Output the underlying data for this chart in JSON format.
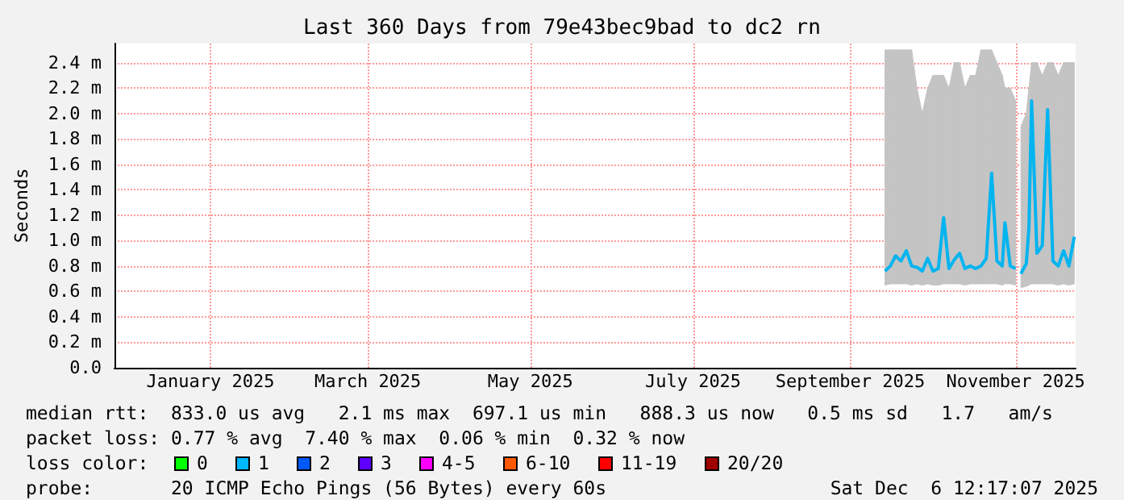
{
  "chart_data": {
    "type": "line",
    "title": "Last 360 Days from 79e43bec9bad to dc2 rn",
    "ylabel": "Seconds",
    "x": [
      "2025-09-26",
      "2025-09-28",
      "2025-09-30",
      "2025-10-02",
      "2025-10-04",
      "2025-10-06",
      "2025-10-08",
      "2025-10-10",
      "2025-10-12",
      "2025-10-14",
      "2025-10-16",
      "2025-10-18",
      "2025-10-20",
      "2025-10-22",
      "2025-10-24",
      "2025-10-26",
      "2025-10-28",
      "2025-10-30",
      "2025-11-01",
      "2025-11-03",
      "2025-11-05",
      "2025-11-07",
      "2025-11-09",
      "2025-11-10",
      "2025-11-12",
      "2025-11-14",
      "2025-11-15",
      "2025-11-16",
      "2025-11-18",
      "2025-11-19",
      "2025-11-20",
      "2025-11-22",
      "2025-11-24",
      "2025-11-26",
      "2025-11-28",
      "2025-11-30",
      "2025-12-02",
      "2025-12-04",
      "2025-12-06"
    ],
    "series": [
      {
        "color": "#00b4f0",
        "values": [
          0.76,
          0.8,
          0.88,
          0.84,
          0.92,
          0.8,
          0.79,
          0.76,
          0.86,
          0.76,
          0.78,
          1.18,
          0.78,
          0.85,
          0.9,
          0.78,
          0.8,
          0.78,
          0.8,
          0.86,
          1.53,
          0.84,
          0.8,
          1.14,
          0.8,
          0.78,
          null,
          0.74,
          0.82,
          1.1,
          2.1,
          0.9,
          0.96,
          2.03,
          0.84,
          0.8,
          0.92,
          0.8,
          1.03
        ],
        "lower": [
          0.65,
          0.66,
          0.66,
          0.66,
          0.66,
          0.65,
          0.66,
          0.65,
          0.66,
          0.65,
          0.65,
          0.66,
          0.66,
          0.66,
          0.66,
          0.65,
          0.66,
          0.66,
          0.66,
          0.66,
          0.66,
          0.66,
          0.65,
          0.66,
          0.66,
          0.65,
          null,
          0.63,
          0.64,
          0.65,
          0.66,
          0.66,
          0.66,
          0.66,
          0.66,
          0.65,
          0.66,
          0.65,
          0.66
        ],
        "upper": [
          2.5,
          2.5,
          2.5,
          2.5,
          2.5,
          2.5,
          2.2,
          2.0,
          2.2,
          2.3,
          2.3,
          2.3,
          2.2,
          2.4,
          2.4,
          2.2,
          2.3,
          2.3,
          2.5,
          2.5,
          2.5,
          2.4,
          2.3,
          2.2,
          2.2,
          2.1,
          null,
          1.9,
          2.0,
          2.2,
          2.4,
          2.4,
          2.3,
          2.4,
          2.4,
          2.3,
          2.4,
          2.4,
          2.4
        ]
      }
    ],
    "xlim": [
      "2024-12-11",
      "2025-12-06T12:17"
    ],
    "xticks": [
      {
        "value": "2025-01-16",
        "label": "January 2025"
      },
      {
        "value": "2025-03-16",
        "label": "March 2025"
      },
      {
        "value": "2025-05-16",
        "label": "May 2025"
      },
      {
        "value": "2025-07-16",
        "label": "July 2025"
      },
      {
        "value": "2025-09-13",
        "label": "September 2025"
      },
      {
        "value": "2025-11-14",
        "label": "November 2025"
      }
    ],
    "ylim": [
      0,
      2.55
    ],
    "yticks": [
      {
        "value": 0,
        "label": "0.0"
      },
      {
        "value": 0.2,
        "label": "0.2 m"
      },
      {
        "value": 0.4,
        "label": "0.4 m"
      },
      {
        "value": 0.6,
        "label": "0.6 m"
      },
      {
        "value": 0.8,
        "label": "0.8 m"
      },
      {
        "value": 1,
        "label": "1.0 m"
      },
      {
        "value": 1.2,
        "label": "1.2 m"
      },
      {
        "value": 1.4,
        "label": "1.4 m"
      },
      {
        "value": 1.6,
        "label": "1.6 m"
      },
      {
        "value": 1.8,
        "label": "1.8 m"
      },
      {
        "value": 2,
        "label": "2.0 m"
      },
      {
        "value": 2.2,
        "label": "2.2 m"
      },
      {
        "value": 2.4,
        "label": "2.4 m"
      }
    ],
    "grid": true,
    "annotations": [
      "median rtt:  833.0 us avg   2.1 ms max  697.1 us min   888.3 us now   0.5 ms sd   1.7   am/s",
      "packet loss: 0.77 % avg  7.40 % max  0.06 % min  0.32 % now",
      "loss color:",
      "0",
      "1",
      "2",
      "3",
      "4-5",
      "6-10",
      "11-19",
      "20/20",
      "probe:       20 ICMP Echo Pings (56 Bytes) every 60s",
      "Sat Dec  6 12:17:07 2025"
    ]
  }
}
